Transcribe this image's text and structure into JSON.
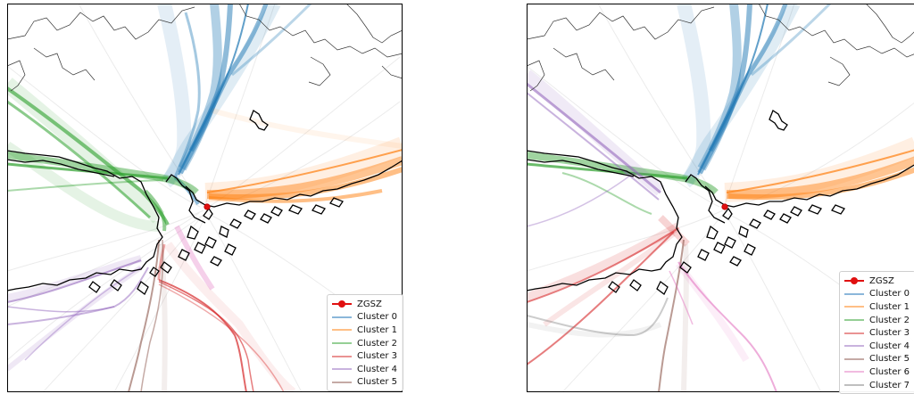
{
  "legend_left": {
    "airport": {
      "label": "ZGSZ",
      "color": "#e01010"
    },
    "items": [
      {
        "label": "Cluster 0",
        "color": "#1f77b4"
      },
      {
        "label": "Cluster 1",
        "color": "#ff7f0e"
      },
      {
        "label": "Cluster 2",
        "color": "#2ca02c"
      },
      {
        "label": "Cluster 3",
        "color": "#d62728"
      },
      {
        "label": "Cluster 4",
        "color": "#9467bd"
      },
      {
        "label": "Cluster 5",
        "color": "#8c564b"
      }
    ]
  },
  "legend_right": {
    "airport": {
      "label": "ZGSZ",
      "color": "#e01010"
    },
    "items": [
      {
        "label": "Cluster 0",
        "color": "#1f77b4"
      },
      {
        "label": "Cluster 1",
        "color": "#ff7f0e"
      },
      {
        "label": "Cluster 2",
        "color": "#2ca02c"
      },
      {
        "label": "Cluster 3",
        "color": "#d62728"
      },
      {
        "label": "Cluster 4",
        "color": "#9467bd"
      },
      {
        "label": "Cluster 5",
        "color": "#8c564b"
      },
      {
        "label": "Cluster 6",
        "color": "#e377c2"
      },
      {
        "label": "Cluster 7",
        "color": "#7f7f7f"
      }
    ]
  }
}
